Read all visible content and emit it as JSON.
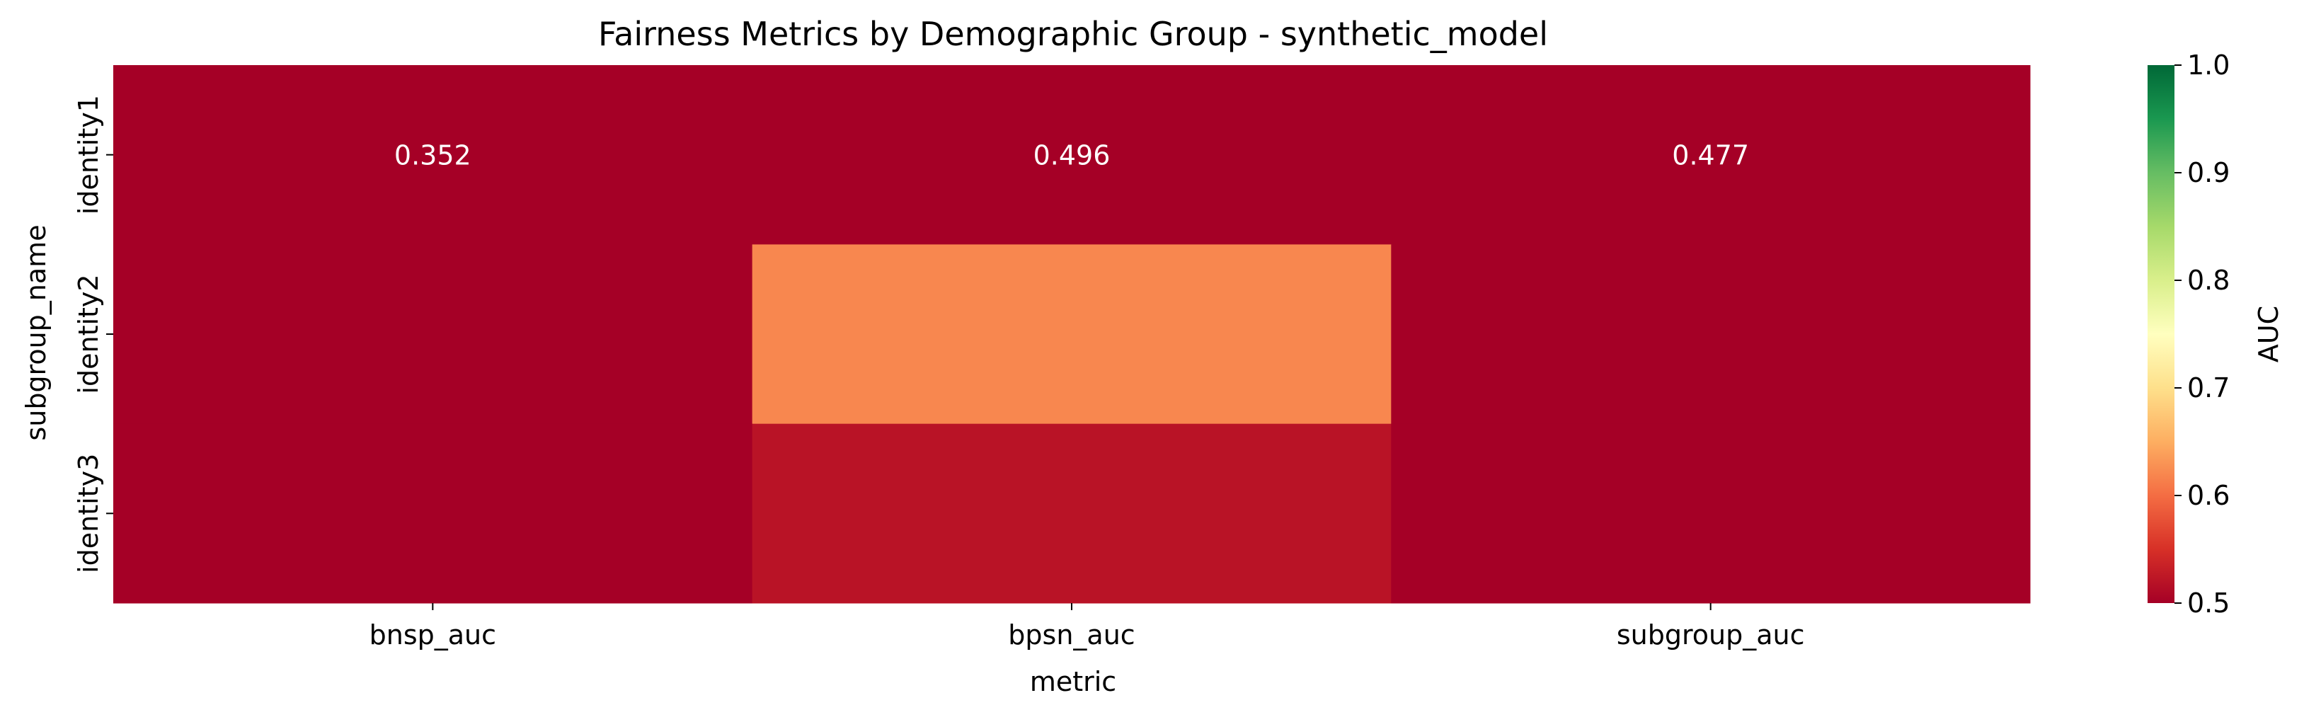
{
  "chart_data": {
    "type": "heatmap",
    "title": "Fairness Metrics by Demographic Group - synthetic_model",
    "xlabel": "metric",
    "ylabel": "subgroup_name",
    "x_categories": [
      "bnsp_auc",
      "bpsn_auc",
      "subgroup_auc"
    ],
    "y_categories": [
      "identity1",
      "identity2",
      "identity3"
    ],
    "values": [
      [
        0.352,
        0.496,
        0.477
      ],
      [
        0.45,
        0.62,
        0.45
      ],
      [
        0.45,
        0.52,
        0.45
      ]
    ],
    "annotations": [
      [
        "0.352",
        "0.496",
        "0.477"
      ],
      [
        "",
        "",
        ""
      ],
      [
        "",
        "",
        ""
      ]
    ],
    "colorbar": {
      "label": "AUC",
      "vmin": 0.5,
      "vmax": 1.0,
      "ticks": [
        "0.5",
        "0.6",
        "0.7",
        "0.8",
        "0.9",
        "1.0"
      ],
      "colormap": "RdYlGn",
      "stops": [
        "#a50026",
        "#d73027",
        "#f46d43",
        "#fdae61",
        "#fee08b",
        "#ffffbf",
        "#d9ef8b",
        "#a6d96a",
        "#66bd63",
        "#1a9850",
        "#006837"
      ]
    }
  }
}
